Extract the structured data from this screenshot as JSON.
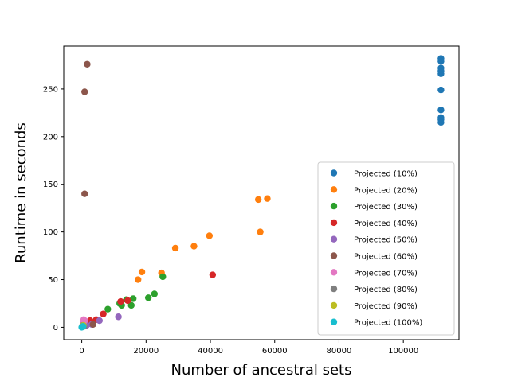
{
  "chart_data": {
    "type": "scatter",
    "xlabel": "Number of ancestral sets",
    "ylabel": "Runtime in seconds",
    "xlim": [
      -5600,
      117300
    ],
    "ylim": [
      -13,
      295
    ],
    "xticks": [
      0,
      20000,
      40000,
      60000,
      80000,
      100000
    ],
    "yticks": [
      0,
      50,
      100,
      150,
      200,
      250
    ],
    "legend_position": "lower right",
    "series": [
      {
        "name": "Projected (10%)",
        "color": "#1f77b4",
        "points": [
          [
            111700,
            282
          ],
          [
            111700,
            279
          ],
          [
            111700,
            272
          ],
          [
            111700,
            269
          ],
          [
            111700,
            266
          ],
          [
            111700,
            249
          ],
          [
            111700,
            228
          ],
          [
            111700,
            220
          ],
          [
            111700,
            218
          ],
          [
            111700,
            215
          ]
        ]
      },
      {
        "name": "Projected (20%)",
        "color": "#ff7f0e",
        "points": [
          [
            57700,
            135
          ],
          [
            54900,
            134
          ],
          [
            55500,
            100
          ],
          [
            39700,
            96
          ],
          [
            34900,
            85
          ],
          [
            29100,
            83
          ],
          [
            18700,
            58
          ],
          [
            24800,
            57
          ],
          [
            17500,
            50
          ]
        ]
      },
      {
        "name": "Projected (30%)",
        "color": "#2ca02c",
        "points": [
          [
            25200,
            53
          ],
          [
            22600,
            35
          ],
          [
            20700,
            31
          ],
          [
            16000,
            30
          ],
          [
            13900,
            29
          ],
          [
            11800,
            25
          ],
          [
            12400,
            23
          ],
          [
            15400,
            23
          ],
          [
            8100,
            19
          ],
          [
            3400,
            3
          ]
        ]
      },
      {
        "name": "Projected (40%)",
        "color": "#d62728",
        "points": [
          [
            40700,
            55
          ],
          [
            14300,
            28
          ],
          [
            12100,
            27
          ],
          [
            6700,
            14
          ],
          [
            4500,
            8
          ],
          [
            2600,
            7
          ],
          [
            1700,
            3
          ]
        ]
      },
      {
        "name": "Projected (50%)",
        "color": "#9467bd",
        "points": [
          [
            11400,
            11
          ],
          [
            5500,
            7
          ],
          [
            3100,
            3
          ],
          [
            1500,
            2
          ]
        ]
      },
      {
        "name": "Projected (60%)",
        "color": "#8c564b",
        "points": [
          [
            1700,
            276
          ],
          [
            900,
            247
          ],
          [
            900,
            140
          ],
          [
            3500,
            3
          ]
        ]
      },
      {
        "name": "Projected (70%)",
        "color": "#e377c2",
        "points": [
          [
            600,
            8
          ],
          [
            900,
            7
          ],
          [
            400,
            4
          ]
        ]
      },
      {
        "name": "Projected (80%)",
        "color": "#7f7f7f",
        "points": [
          [
            300,
            2
          ],
          [
            700,
            1
          ]
        ]
      },
      {
        "name": "Projected (90%)",
        "color": "#bcbd22",
        "points": [
          [
            200,
            1
          ],
          [
            500,
            2
          ]
        ]
      },
      {
        "name": "Projected (100%)",
        "color": "#17becf",
        "points": [
          [
            0,
            0
          ],
          [
            200,
            0.5
          ],
          [
            400,
            1
          ]
        ]
      }
    ]
  }
}
